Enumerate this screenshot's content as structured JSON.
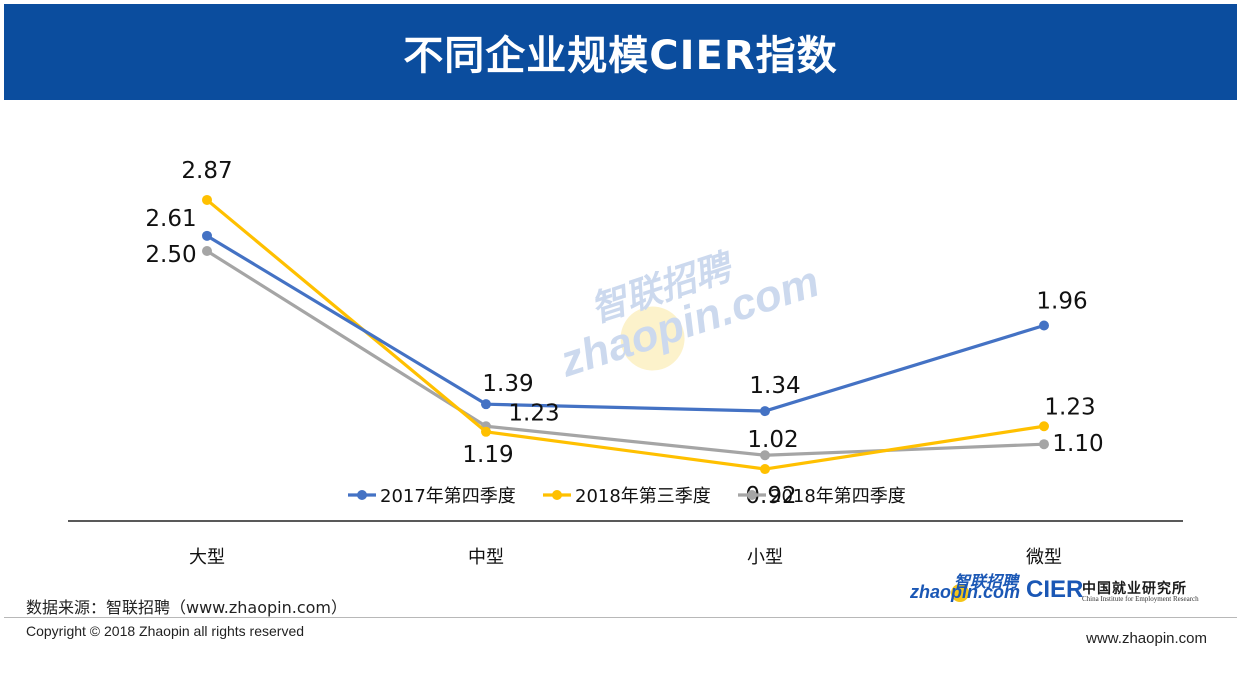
{
  "header": {
    "title": "不同企业规模CIER指数"
  },
  "chart_data": {
    "type": "line",
    "title": "不同企业规模CIER指数",
    "categories": [
      "大型",
      "中型",
      "小型",
      "微型"
    ],
    "series": [
      {
        "name": "2017年第四季度",
        "color": "#4472c4",
        "values": [
          2.61,
          1.39,
          1.34,
          1.96
        ],
        "labels": [
          "2.61",
          "1.39",
          "1.34",
          "1.96"
        ]
      },
      {
        "name": "2018年第三季度",
        "color": "#ffc000",
        "values": [
          2.87,
          1.19,
          0.92,
          1.23
        ],
        "labels": [
          "2.87",
          "1.19",
          "0.92",
          "1.23"
        ]
      },
      {
        "name": "2018年第四季度",
        "color": "#a5a5a5",
        "values": [
          2.5,
          1.23,
          1.02,
          1.1
        ],
        "labels": [
          "2.50",
          "1.23",
          "1.02",
          "1.10"
        ]
      }
    ],
    "legend_position": "bottom",
    "grid": false
  },
  "footer": {
    "source": "数据来源：智联招聘（www.zhaopin.com）",
    "copyright": "Copyright © 2018 Zhaopin all rights reserved",
    "website": "www.zhaopin.com",
    "logo_zhaopin_cn": "智联招聘",
    "logo_zhaopin_en": "zhaopin.com",
    "logo_cier": "CIER",
    "logo_cier_cn": "中国就业研究所",
    "logo_cier_en": "China Institute for Employment Research"
  }
}
